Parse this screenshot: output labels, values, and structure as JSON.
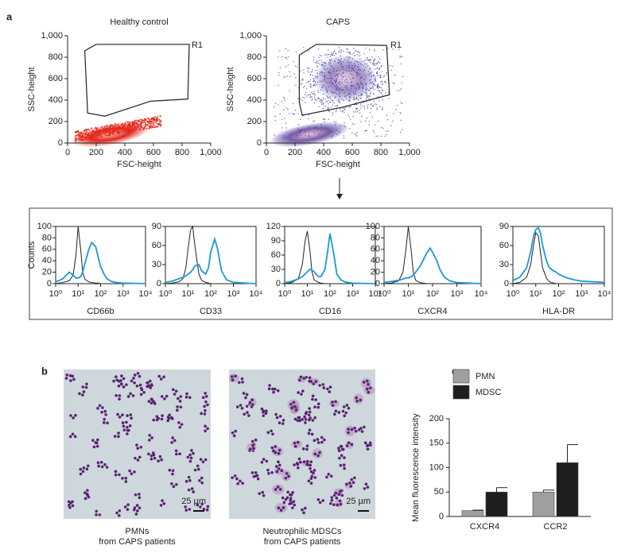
{
  "panel_labels": [
    "a",
    "b",
    "c"
  ],
  "chart_data": [
    {
      "type": "scatter-density",
      "title": "Healthy control",
      "x_label": "FSC-height",
      "y_label": "SSC-height",
      "xlim": [
        0,
        1000
      ],
      "ylim": [
        0,
        1000
      ],
      "xticks": [
        0,
        200,
        400,
        600,
        800,
        {
          "value": 1000,
          "label": "1,000"
        }
      ],
      "yticks": [
        0,
        200,
        400,
        600,
        800,
        {
          "value": 1000,
          "label": "1,000"
        }
      ],
      "color": "#e3261b",
      "gate": {
        "label": "R1",
        "x": [
          120,
          200,
          850,
          840,
          580,
          260,
          140
        ],
        "y": [
          860,
          920,
          920,
          410,
          390,
          250,
          280
        ]
      }
    },
    {
      "type": "scatter-density",
      "title": "CAPS",
      "x_label": "FSC-height",
      "y_label": "SSC-height",
      "xlim": [
        0,
        1000
      ],
      "ylim": [
        0,
        1000
      ],
      "xticks": [
        0,
        200,
        400,
        600,
        800,
        {
          "value": 1000,
          "label": "1,000"
        }
      ],
      "yticks": [
        0,
        200,
        400,
        600,
        800,
        {
          "value": 1000,
          "label": "1,000"
        }
      ],
      "color": "#3b2f9e",
      "gate": {
        "label": "R1",
        "x": [
          230,
          350,
          840,
          860,
          520,
          250,
          230
        ],
        "y": [
          820,
          920,
          910,
          450,
          330,
          260,
          380
        ]
      }
    },
    {
      "type": "histogram-overlay",
      "x_label": "CD66b",
      "y_label": "Counts",
      "xscale": "log",
      "xlim": [
        1,
        10000
      ],
      "xticks": [
        {
          "value": 1,
          "label": "10⁰"
        },
        {
          "value": 10,
          "label": "10¹"
        },
        {
          "value": 100,
          "label": "10²"
        },
        {
          "value": 1000,
          "label": "10³"
        },
        {
          "value": 10000,
          "label": "10⁴"
        }
      ],
      "ylim": [
        0,
        100
      ],
      "yticks": [
        0,
        20,
        40,
        60,
        80,
        100
      ],
      "x": [
        1,
        2,
        4,
        6,
        8,
        10,
        13,
        16,
        20,
        30,
        40,
        60,
        80,
        100,
        150,
        200,
        300,
        500,
        1000,
        10000
      ],
      "series": [
        {
          "color": "#222222",
          "values": [
            0,
            2,
            5,
            15,
            50,
            100,
            60,
            20,
            8,
            3,
            2,
            1,
            1,
            0,
            0,
            0,
            0,
            0,
            0,
            0
          ]
        },
        {
          "color": "#1a9ad6",
          "values": [
            3,
            8,
            20,
            15,
            10,
            10,
            12,
            20,
            35,
            60,
            72,
            65,
            45,
            30,
            15,
            8,
            4,
            2,
            1,
            0
          ]
        }
      ]
    },
    {
      "type": "histogram-overlay",
      "x_label": "CD33",
      "xscale": "log",
      "xlim": [
        1,
        10000
      ],
      "xticks": [
        {
          "value": 1,
          "label": "10⁰"
        },
        {
          "value": 10,
          "label": "10¹"
        },
        {
          "value": 100,
          "label": "10²"
        },
        {
          "value": 1000,
          "label": "10³"
        },
        {
          "value": 10000,
          "label": "10⁴"
        }
      ],
      "ylim": [
        0,
        90
      ],
      "yticks": [
        0,
        30,
        60,
        90
      ],
      "x": [
        1,
        2,
        4,
        6,
        8,
        10,
        13,
        16,
        20,
        30,
        40,
        60,
        80,
        100,
        150,
        200,
        300,
        500,
        1000,
        10000
      ],
      "series": [
        {
          "color": "#222222",
          "values": [
            0,
            1,
            3,
            8,
            25,
            55,
            85,
            90,
            60,
            15,
            5,
            2,
            1,
            0,
            0,
            0,
            0,
            0,
            0,
            0
          ]
        },
        {
          "color": "#1a9ad6",
          "values": [
            2,
            4,
            8,
            10,
            12,
            15,
            18,
            22,
            28,
            30,
            20,
            15,
            25,
            50,
            70,
            55,
            20,
            6,
            2,
            0
          ]
        }
      ]
    },
    {
      "type": "histogram-overlay",
      "x_label": "CD16",
      "xscale": "log",
      "xlim": [
        1,
        10000
      ],
      "xticks": [
        {
          "value": 1,
          "label": "10⁰"
        },
        {
          "value": 10,
          "label": "10¹"
        },
        {
          "value": 100,
          "label": "10²"
        },
        {
          "value": 1000,
          "label": "10³"
        },
        {
          "value": 10000,
          "label": "10⁴"
        }
      ],
      "ylim": [
        0,
        120
      ],
      "yticks": [
        0,
        30,
        60,
        90,
        120
      ],
      "x": [
        1,
        2,
        4,
        6,
        8,
        10,
        13,
        16,
        20,
        30,
        40,
        60,
        80,
        100,
        150,
        200,
        300,
        500,
        1000,
        10000
      ],
      "series": [
        {
          "color": "#222222",
          "values": [
            0,
            2,
            10,
            40,
            90,
            110,
            70,
            25,
            8,
            3,
            1,
            0,
            0,
            0,
            0,
            0,
            0,
            0,
            0,
            0
          ]
        },
        {
          "color": "#1a9ad6",
          "values": [
            2,
            5,
            10,
            15,
            20,
            25,
            30,
            28,
            25,
            15,
            15,
            30,
            70,
            105,
            60,
            20,
            8,
            3,
            1,
            0
          ]
        }
      ]
    },
    {
      "type": "histogram-overlay",
      "x_label": "CXCR4",
      "xscale": "log",
      "xlim": [
        1,
        10000
      ],
      "xticks": [
        {
          "value": 1,
          "label": "10⁰"
        },
        {
          "value": 10,
          "label": "10¹"
        },
        {
          "value": 100,
          "label": "10²"
        },
        {
          "value": 1000,
          "label": "10³"
        },
        {
          "value": 10000,
          "label": "10⁴"
        }
      ],
      "ylim": [
        0,
        100
      ],
      "yticks": [
        0,
        20,
        40,
        60,
        80,
        100
      ],
      "x": [
        1,
        2,
        4,
        6,
        8,
        10,
        13,
        16,
        20,
        30,
        40,
        60,
        80,
        100,
        150,
        200,
        300,
        500,
        1000,
        10000
      ],
      "series": [
        {
          "color": "#222222",
          "values": [
            0,
            1,
            5,
            20,
            60,
            100,
            60,
            20,
            6,
            2,
            1,
            0,
            0,
            0,
            0,
            0,
            0,
            0,
            0,
            0
          ]
        },
        {
          "color": "#1a9ad6",
          "values": [
            2,
            4,
            6,
            8,
            10,
            10,
            12,
            15,
            20,
            30,
            40,
            55,
            62,
            55,
            40,
            25,
            12,
            5,
            2,
            0
          ]
        }
      ]
    },
    {
      "type": "histogram-overlay",
      "x_label": "HLA-DR",
      "xscale": "log",
      "xlim": [
        1,
        10000
      ],
      "xticks": [
        {
          "value": 1,
          "label": "10⁰"
        },
        {
          "value": 10,
          "label": "10¹"
        },
        {
          "value": 100,
          "label": "10²"
        },
        {
          "value": 1000,
          "label": "10³"
        },
        {
          "value": 10000,
          "label": "10⁴"
        }
      ],
      "ylim": [
        0,
        90
      ],
      "yticks": [
        0,
        30,
        60,
        90
      ],
      "x": [
        1,
        2,
        4,
        6,
        8,
        10,
        13,
        16,
        20,
        30,
        40,
        60,
        80,
        100,
        150,
        200,
        300,
        500,
        1000,
        10000
      ],
      "series": [
        {
          "color": "#222222",
          "values": [
            0,
            2,
            10,
            30,
            60,
            80,
            75,
            50,
            25,
            8,
            3,
            1,
            0,
            0,
            0,
            0,
            0,
            0,
            0,
            0
          ]
        },
        {
          "color": "#1a9ad6",
          "values": [
            5,
            10,
            25,
            50,
            75,
            85,
            88,
            80,
            60,
            35,
            25,
            20,
            18,
            15,
            12,
            10,
            8,
            6,
            4,
            2
          ]
        }
      ]
    },
    {
      "type": "bar",
      "y_label": "Mean fluorescence intensity",
      "categories": [
        "CXCR4",
        "CCR2"
      ],
      "ylim": [
        0,
        200
      ],
      "yticks": [
        0,
        50,
        100,
        150,
        200
      ],
      "series": [
        {
          "name": "PMN",
          "color": "#a0a0a0",
          "values": [
            12,
            50
          ],
          "errors": [
            1,
            4
          ]
        },
        {
          "name": "MDSC",
          "color": "#1e1e1e",
          "values": [
            50,
            110
          ],
          "errors": [
            9,
            37
          ]
        }
      ]
    }
  ],
  "micrographs": [
    {
      "scale_bar": "25 µm",
      "caption": [
        "PMNs",
        "from CAPS patients"
      ]
    },
    {
      "scale_bar": "25 µm",
      "caption": [
        "Neutrophilic MDSCs",
        "from CAPS patients"
      ]
    }
  ]
}
